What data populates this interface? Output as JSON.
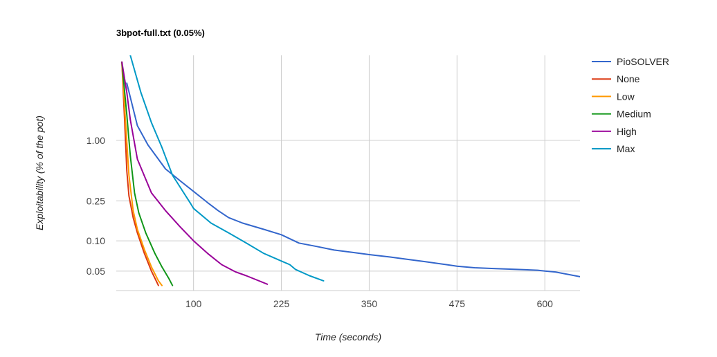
{
  "chart_data": {
    "type": "line",
    "title": "3bpot-full.txt (0.05%)",
    "xlabel": "Time (seconds)",
    "ylabel": "Exploitability (% of the pot)",
    "y_scale": "log",
    "xlim": [
      -10,
      650
    ],
    "ylim": [
      0.032,
      7.0
    ],
    "x_ticks": [
      {
        "value": 100,
        "label": "100"
      },
      {
        "value": 225,
        "label": "225"
      },
      {
        "value": 350,
        "label": "350"
      },
      {
        "value": 475,
        "label": "475"
      },
      {
        "value": 600,
        "label": "600"
      }
    ],
    "y_ticks": [
      {
        "value": 1.0,
        "label": "1.00"
      },
      {
        "value": 0.25,
        "label": "0.25"
      },
      {
        "value": 0.1,
        "label": "0.10"
      },
      {
        "value": 0.05,
        "label": "0.05"
      }
    ],
    "grid": true,
    "legend_position": "right",
    "series": [
      {
        "name": "PioSOLVER",
        "color": "#3366cc",
        "points": [
          [
            5,
            3.7
          ],
          [
            20,
            1.4
          ],
          [
            35,
            0.9
          ],
          [
            60,
            0.52
          ],
          [
            80,
            0.4
          ],
          [
            100,
            0.31
          ],
          [
            120,
            0.24
          ],
          [
            135,
            0.2
          ],
          [
            150,
            0.17
          ],
          [
            170,
            0.15
          ],
          [
            200,
            0.13
          ],
          [
            225,
            0.115
          ],
          [
            250,
            0.095
          ],
          [
            275,
            0.088
          ],
          [
            300,
            0.081
          ],
          [
            325,
            0.077
          ],
          [
            350,
            0.073
          ],
          [
            380,
            0.069
          ],
          [
            400,
            0.066
          ],
          [
            430,
            0.062
          ],
          [
            460,
            0.058
          ],
          [
            475,
            0.056
          ],
          [
            500,
            0.054
          ],
          [
            530,
            0.053
          ],
          [
            560,
            0.052
          ],
          [
            590,
            0.051
          ],
          [
            600,
            0.05
          ],
          [
            615,
            0.049
          ],
          [
            650,
            0.044
          ]
        ]
      },
      {
        "name": "None",
        "color": "#dc3912",
        "points": [
          [
            -2,
            6.0
          ],
          [
            2,
            1.5
          ],
          [
            5,
            0.5
          ],
          [
            8,
            0.28
          ],
          [
            14,
            0.17
          ],
          [
            20,
            0.12
          ],
          [
            30,
            0.075
          ],
          [
            40,
            0.05
          ],
          [
            50,
            0.036
          ]
        ]
      },
      {
        "name": "Low",
        "color": "#ff9900",
        "points": [
          [
            -2,
            6.0
          ],
          [
            3,
            1.6
          ],
          [
            8,
            0.45
          ],
          [
            14,
            0.2
          ],
          [
            20,
            0.13
          ],
          [
            30,
            0.082
          ],
          [
            40,
            0.055
          ],
          [
            50,
            0.04
          ],
          [
            55,
            0.036
          ]
        ]
      },
      {
        "name": "Medium",
        "color": "#109618",
        "points": [
          [
            -2,
            6.0
          ],
          [
            5,
            1.8
          ],
          [
            10,
            0.7
          ],
          [
            16,
            0.3
          ],
          [
            22,
            0.19
          ],
          [
            32,
            0.12
          ],
          [
            45,
            0.075
          ],
          [
            55,
            0.055
          ],
          [
            65,
            0.042
          ],
          [
            70,
            0.036
          ]
        ]
      },
      {
        "name": "High",
        "color": "#990099",
        "points": [
          [
            -2,
            6.0
          ],
          [
            5,
            3.0
          ],
          [
            10,
            1.6
          ],
          [
            20,
            0.65
          ],
          [
            40,
            0.3
          ],
          [
            60,
            0.2
          ],
          [
            80,
            0.14
          ],
          [
            100,
            0.1
          ],
          [
            120,
            0.075
          ],
          [
            140,
            0.058
          ],
          [
            160,
            0.049
          ],
          [
            175,
            0.045
          ],
          [
            205,
            0.037
          ]
        ]
      },
      {
        "name": "Max",
        "color": "#0099c6",
        "points": [
          [
            10,
            7.0
          ],
          [
            25,
            3.0
          ],
          [
            40,
            1.5
          ],
          [
            55,
            0.85
          ],
          [
            70,
            0.45
          ],
          [
            95,
            0.24
          ],
          [
            100,
            0.21
          ],
          [
            125,
            0.15
          ],
          [
            150,
            0.12
          ],
          [
            175,
            0.095
          ],
          [
            200,
            0.075
          ],
          [
            225,
            0.063
          ],
          [
            237,
            0.058
          ],
          [
            245,
            0.052
          ],
          [
            265,
            0.045
          ],
          [
            285,
            0.04
          ]
        ]
      }
    ]
  }
}
